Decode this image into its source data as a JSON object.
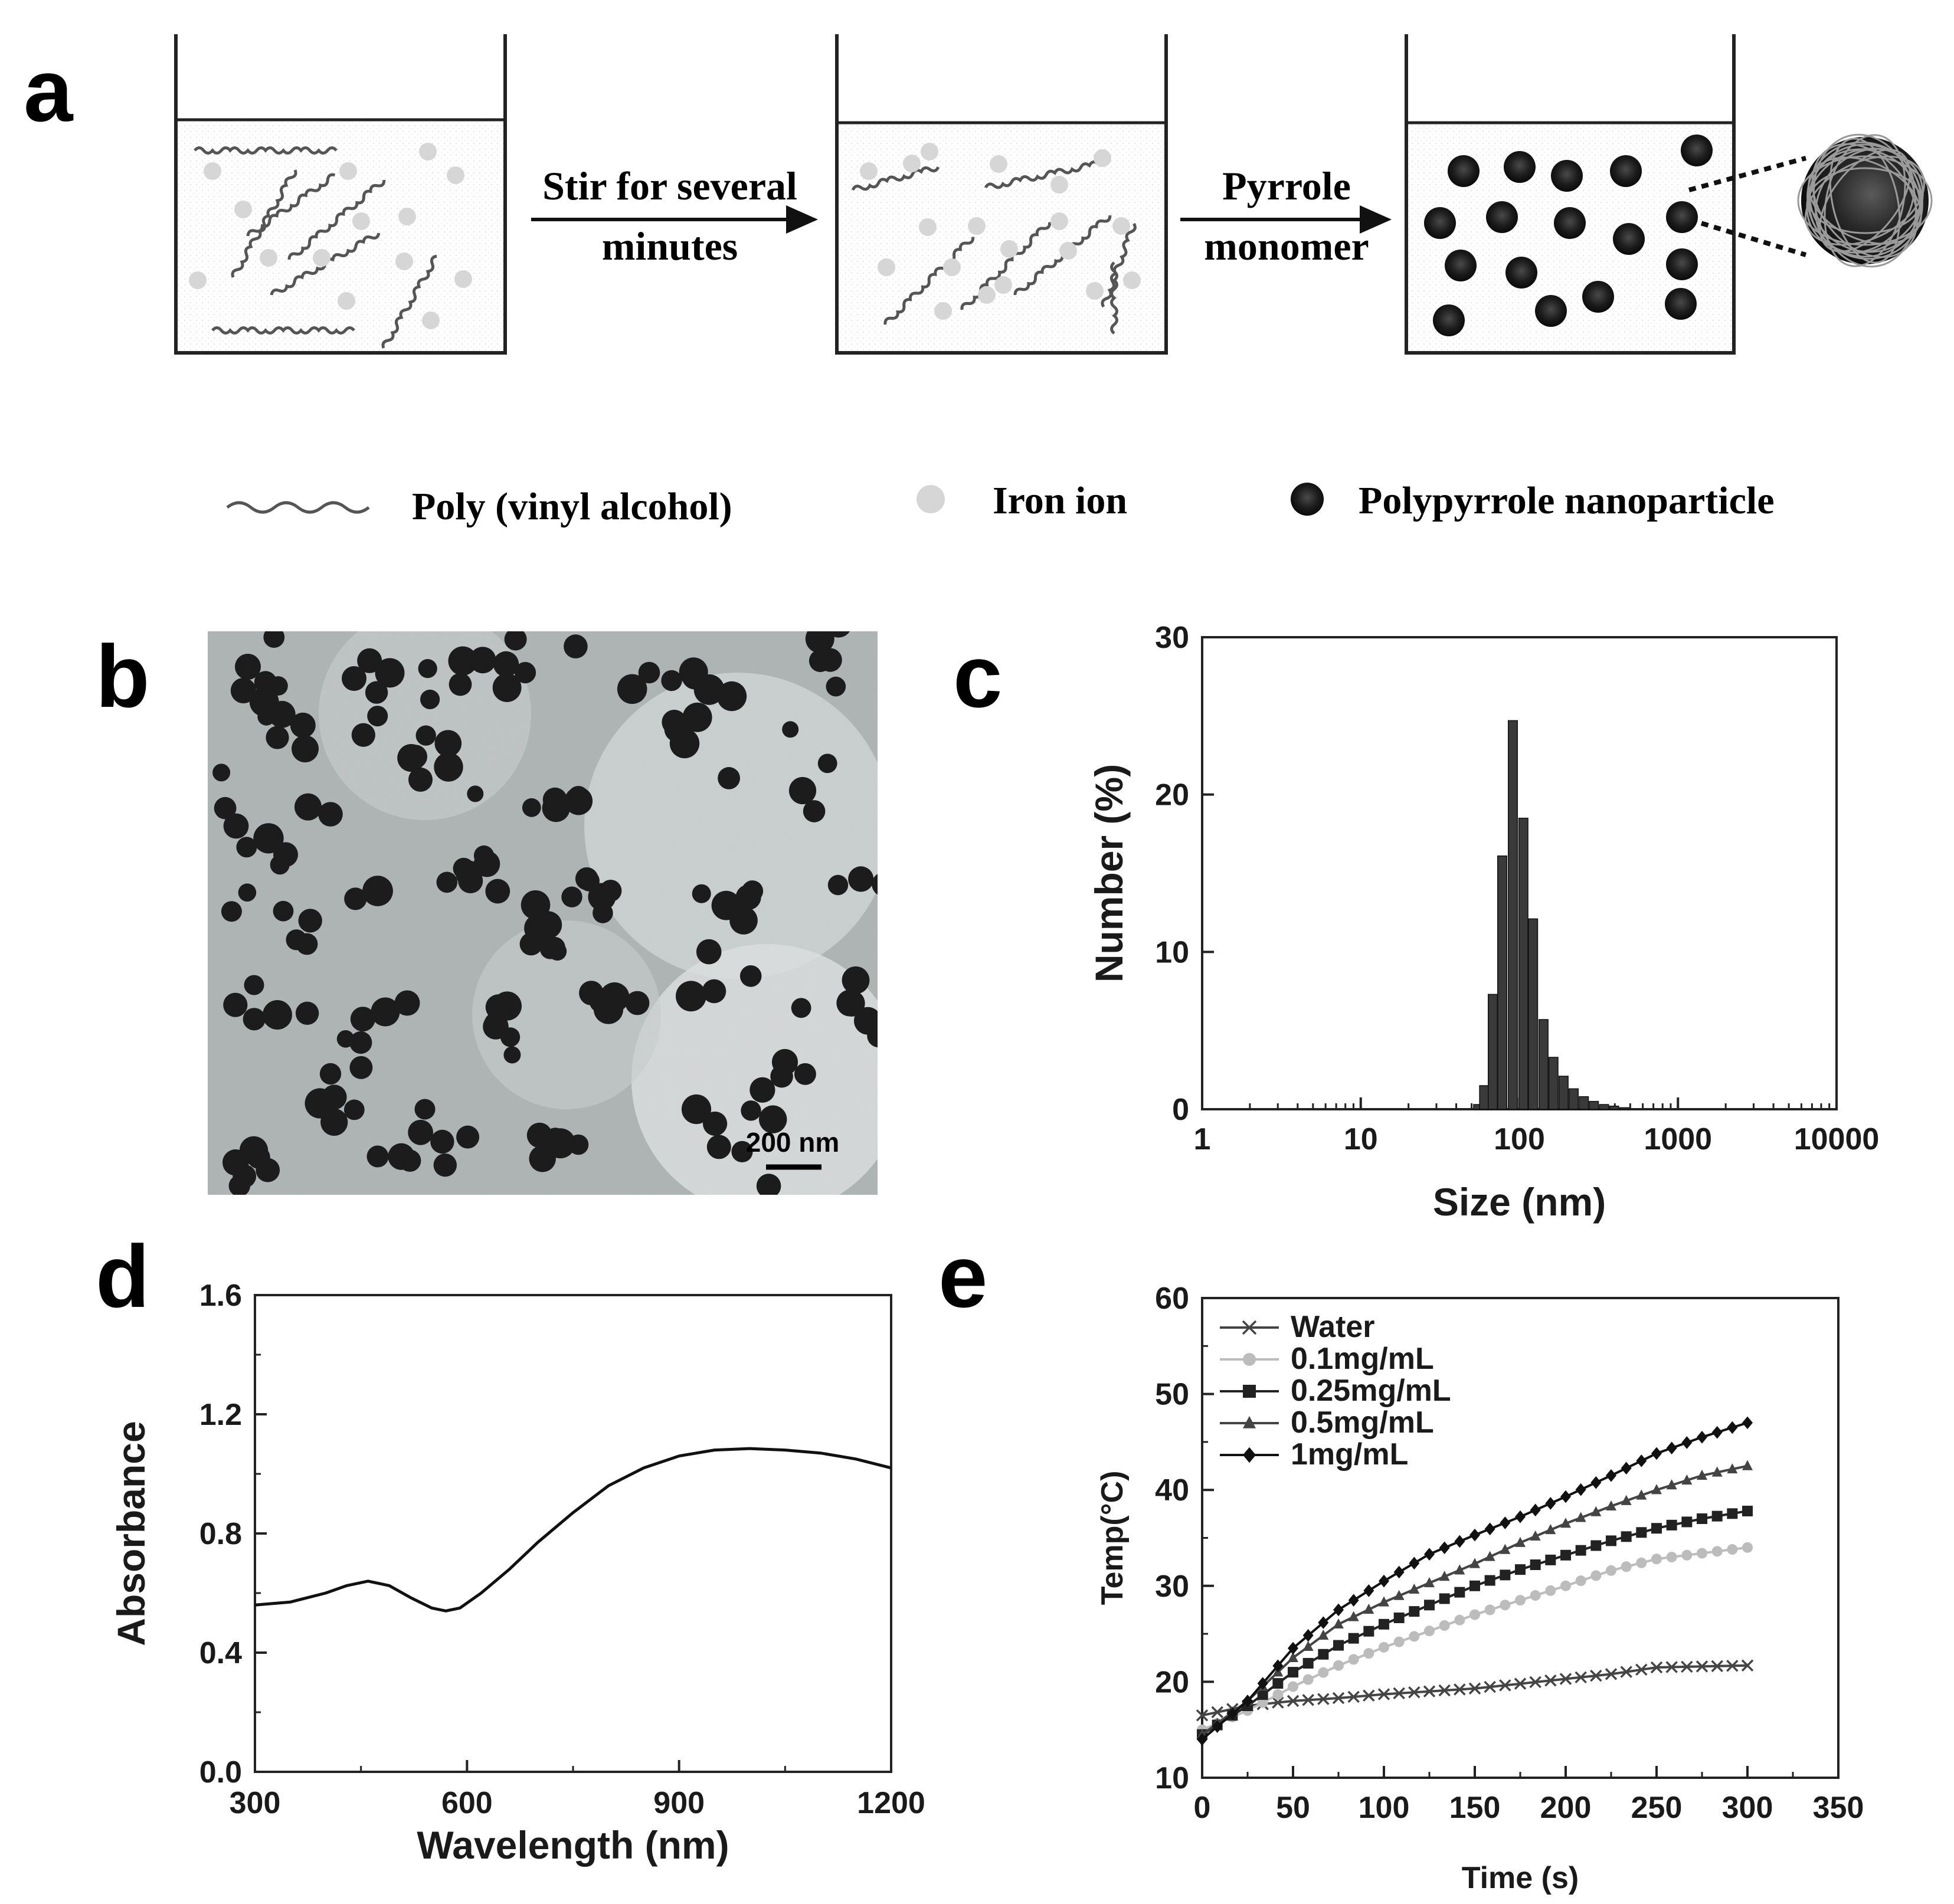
{
  "panel_labels": {
    "a": "a",
    "b": "b",
    "c": "c",
    "d": "d",
    "e": "e"
  },
  "scheme": {
    "step1_line1": "Stir for several",
    "step1_line2": "minutes",
    "step2_line1": "Pyrrole",
    "step2_line2": "monomer",
    "legend": {
      "pva": "Poly (vinyl alcohol)",
      "iron": "Iron ion",
      "ppy": "Polypyrrole nanoparticle"
    },
    "colors": {
      "chain": "#555555",
      "ion": "#d6d6d6",
      "particle": "#222222"
    }
  },
  "tem": {
    "scale_bar_label": "200 nm"
  },
  "chart_data": [
    {
      "id": "c",
      "type": "bar",
      "xscale": "log",
      "xlabel": "Size (nm)",
      "ylabel": "Number (%)",
      "xlim": [
        1,
        10000
      ],
      "ylim": [
        0,
        30
      ],
      "xticks": [
        1,
        10,
        100,
        1000,
        10000
      ],
      "xtick_labels": [
        "1",
        "10",
        "100",
        "1000",
        "10000"
      ],
      "yticks": [
        0,
        10,
        20,
        30
      ],
      "ytick_labels": [
        "0",
        "10",
        "20",
        "30"
      ],
      "bars": [
        {
          "x": 55,
          "value": 0.3
        },
        {
          "x": 60,
          "value": 1.5
        },
        {
          "x": 68,
          "value": 7.3
        },
        {
          "x": 78,
          "value": 16.1
        },
        {
          "x": 91,
          "value": 24.7
        },
        {
          "x": 106,
          "value": 18.5
        },
        {
          "x": 122,
          "value": 12.1
        },
        {
          "x": 142,
          "value": 5.7
        },
        {
          "x": 164,
          "value": 3.3
        },
        {
          "x": 190,
          "value": 2.1
        },
        {
          "x": 220,
          "value": 1.3
        },
        {
          "x": 255,
          "value": 0.8
        },
        {
          "x": 295,
          "value": 0.5
        },
        {
          "x": 342,
          "value": 0.3
        },
        {
          "x": 396,
          "value": 0.2
        },
        {
          "x": 459,
          "value": 0.1
        }
      ]
    },
    {
      "id": "d",
      "type": "line",
      "xlabel": "Wavelength (nm)",
      "ylabel": "Absorbance",
      "xlim": [
        300,
        1200
      ],
      "ylim": [
        0,
        1.6
      ],
      "xticks": [
        300,
        600,
        900,
        1200
      ],
      "xtick_labels": [
        "300",
        "600",
        "900",
        "1200"
      ],
      "yticks": [
        0,
        0.4,
        0.8,
        1.2,
        1.6
      ],
      "ytick_labels": [
        "0.0",
        "0.4",
        "0.8",
        "1.2",
        "1.6"
      ],
      "series": [
        {
          "name": "Absorbance",
          "x": [
            300,
            350,
            400,
            430,
            460,
            490,
            520,
            550,
            570,
            590,
            620,
            660,
            700,
            750,
            800,
            850,
            900,
            950,
            1000,
            1050,
            1100,
            1150,
            1200
          ],
          "y": [
            0.56,
            0.57,
            0.6,
            0.625,
            0.64,
            0.625,
            0.585,
            0.55,
            0.54,
            0.55,
            0.6,
            0.68,
            0.77,
            0.87,
            0.96,
            1.02,
            1.06,
            1.08,
            1.085,
            1.08,
            1.07,
            1.05,
            1.02
          ]
        }
      ]
    },
    {
      "id": "e",
      "type": "line",
      "xlabel": "Time (s)",
      "ylabel": "Temp(°C)",
      "xlim": [
        0,
        350
      ],
      "ylim": [
        10,
        60
      ],
      "xticks": [
        0,
        50,
        100,
        150,
        200,
        250,
        300,
        350
      ],
      "xtick_labels": [
        "0",
        "50",
        "100",
        "150",
        "200",
        "250",
        "300",
        "350"
      ],
      "yticks": [
        10,
        20,
        30,
        40,
        50,
        60
      ],
      "ytick_labels": [
        "10",
        "20",
        "30",
        "40",
        "50",
        "60"
      ],
      "legend_position": "top-left",
      "series": [
        {
          "name": "Water",
          "marker": "x",
          "color": "#444444",
          "x": [
            0,
            25,
            50,
            75,
            100,
            125,
            150,
            175,
            200,
            225,
            250,
            275,
            300
          ],
          "y": [
            16.5,
            17.5,
            18.0,
            18.3,
            18.7,
            19.0,
            19.3,
            19.8,
            20.3,
            20.8,
            21.5,
            21.6,
            21.7
          ]
        },
        {
          "name": "0.1mg/mL",
          "marker": "circle",
          "color": "#bcbcbc",
          "x": [
            0,
            25,
            50,
            75,
            100,
            125,
            150,
            175,
            200,
            225,
            250,
            275,
            300
          ],
          "y": [
            15.0,
            17.0,
            19.5,
            21.7,
            23.6,
            25.3,
            27.0,
            28.5,
            30.0,
            31.6,
            32.8,
            33.4,
            34.0
          ]
        },
        {
          "name": "0.25mg/mL",
          "marker": "square",
          "color": "#222222",
          "x": [
            0,
            25,
            50,
            75,
            100,
            125,
            150,
            175,
            200,
            225,
            250,
            275,
            300
          ],
          "y": [
            14.5,
            17.5,
            21.0,
            23.8,
            26.0,
            28.0,
            30.0,
            31.7,
            33.2,
            34.7,
            36.0,
            37.0,
            37.8
          ]
        },
        {
          "name": "0.5mg/mL",
          "marker": "triangle",
          "color": "#444444",
          "x": [
            0,
            25,
            50,
            75,
            100,
            125,
            150,
            175,
            200,
            225,
            250,
            275,
            300
          ],
          "y": [
            14.5,
            18.0,
            22.5,
            26.0,
            28.3,
            30.3,
            32.3,
            34.5,
            36.5,
            38.3,
            40.0,
            41.5,
            42.5
          ]
        },
        {
          "name": "1mg/mL",
          "marker": "diamond",
          "color": "#111111",
          "x": [
            0,
            25,
            50,
            75,
            100,
            125,
            150,
            175,
            200,
            225,
            250,
            275,
            300
          ],
          "y": [
            14.0,
            18.0,
            23.5,
            27.5,
            30.5,
            33.3,
            35.3,
            37.2,
            39.3,
            41.5,
            43.8,
            45.5,
            47.0
          ]
        }
      ]
    }
  ]
}
